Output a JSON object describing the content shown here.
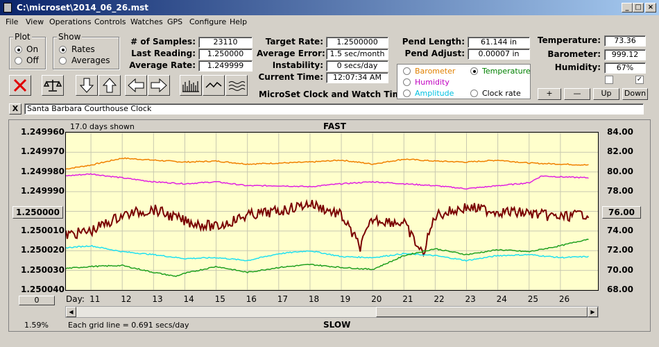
{
  "window": {
    "title": "C:\\microset\\2014_06_26.mst"
  },
  "menu": [
    "File",
    "View",
    "Operations",
    "Controls",
    "Watches",
    "GPS",
    "Configure",
    "Help"
  ],
  "plot_group": {
    "title": "Plot",
    "options": [
      "On",
      "Off"
    ],
    "selected": "On"
  },
  "show_group": {
    "title": "Show",
    "options": [
      "Rates",
      "Averages"
    ],
    "selected": "Rates"
  },
  "stats": {
    "samples_label": "# of Samples:",
    "samples": "23110",
    "last_label": "Last Reading:",
    "last": "1.250000",
    "avg_label": "Average Rate:",
    "avg": "1.249999",
    "target_label": "Target Rate:",
    "target": "1.2500000",
    "err_label": "Average Error:",
    "err": "1.5 sec/month",
    "inst_label": "Instability:",
    "inst": "0 secs/day",
    "time_label": "Current Time:",
    "time": "12:07:34 AM",
    "pendlen_label": "Pend Length:",
    "pendlen": "61.144 in",
    "pendadj_label": "Pend Adjust:",
    "pendadj": "0.00007 in",
    "temp_label": "Temperature:",
    "temp": "73.36",
    "baro_label": "Barometer:",
    "baro": "999.12",
    "hum_label": "Humidity:",
    "hum": "67%"
  },
  "app_caption": "MicroSet Clock and Watch Timer",
  "sensor_options": [
    {
      "label": "Barometer",
      "color": "#e08000",
      "selected": false
    },
    {
      "label": "Temperature",
      "color": "#008000",
      "selected": true
    },
    {
      "label": "Humidity",
      "color": "#c000c0",
      "selected": false
    },
    {
      "label": "Clock rate",
      "color": "#000000",
      "selected": false
    },
    {
      "label": "Amplitude",
      "color": "#00c0e0",
      "selected": false
    }
  ],
  "scale_buttons": [
    "+",
    "—",
    "Up",
    "Down"
  ],
  "checkboxes": [
    false,
    true
  ],
  "clock_name": "Santa Barbara Courthouse Clock",
  "close_label": "X",
  "graph": {
    "days_shown": "17.0 days shown",
    "fast_label": "FAST",
    "slow_label": "SLOW",
    "grid_note": "Each grid line = 0.691 secs/day",
    "percent": "1.59%",
    "day_label": "Day:",
    "left_reset": "1.250000",
    "left_bottom_btn": "0",
    "right_reset": "76.00"
  },
  "chart_data": {
    "type": "line",
    "left_axis": {
      "ticks": [
        "1.249960",
        "1.249970",
        "1.249980",
        "1.249990",
        "1.250000",
        "1.250010",
        "1.250020",
        "1.250030",
        "1.250040"
      ],
      "range": [
        1.24996,
        1.25004
      ],
      "inverted": true
    },
    "right_axis": {
      "ticks": [
        "84.00",
        "82.00",
        "80.00",
        "78.00",
        "76.00",
        "74.00",
        "72.00",
        "70.00",
        "68.00"
      ],
      "range": [
        68,
        84
      ]
    },
    "x_ticks": [
      "11",
      "12",
      "13",
      "14",
      "15",
      "16",
      "17",
      "18",
      "19",
      "20",
      "21",
      "22",
      "23",
      "24",
      "25",
      "26"
    ],
    "x_range": [
      10.2,
      27.2
    ],
    "grid": true,
    "series": [
      {
        "name": "Barometer",
        "color": "#f08000",
        "axis": "right",
        "x": [
          10.2,
          11,
          12,
          13,
          14,
          15,
          16,
          17,
          18,
          19,
          20,
          21,
          22,
          23,
          24,
          25,
          26,
          26.9
        ],
        "y": [
          80.3,
          80.7,
          81.4,
          81.2,
          81.0,
          81.1,
          80.8,
          80.9,
          81.0,
          81.2,
          80.8,
          81.3,
          81.1,
          81.0,
          81.2,
          80.9,
          80.8,
          80.7
        ]
      },
      {
        "name": "Humidity",
        "color": "#e020e0",
        "axis": "right",
        "x": [
          10.2,
          11,
          12,
          13,
          14,
          15,
          16,
          17,
          18,
          19,
          20,
          21,
          22,
          23,
          24,
          25,
          25.4,
          26,
          26.9
        ],
        "y": [
          79.6,
          79.8,
          79.4,
          79.0,
          78.8,
          79.0,
          78.6,
          78.6,
          78.5,
          78.8,
          79.0,
          78.8,
          78.6,
          78.3,
          78.6,
          78.9,
          79.6,
          79.5,
          79.4
        ]
      },
      {
        "name": "Clock rate",
        "color": "#7a0000",
        "axis": "left",
        "x": [
          10.2,
          11,
          12,
          13,
          14,
          15,
          16,
          17,
          18,
          19,
          19.6,
          20,
          21,
          21.6,
          22,
          23,
          24,
          25,
          26,
          26.9
        ],
        "y": [
          1.250012,
          1.25001,
          1.250002,
          1.249999,
          1.250005,
          1.250008,
          1.250002,
          1.25,
          1.249996,
          1.250002,
          1.250018,
          1.250004,
          1.250006,
          1.250022,
          1.250002,
          1.249998,
          1.25,
          1.250001,
          1.250003,
          1.250001
        ]
      },
      {
        "name": "Amplitude",
        "color": "#20e0f0",
        "axis": "right",
        "x": [
          10.2,
          11,
          12,
          13,
          14,
          15,
          16,
          17,
          18,
          19,
          20,
          21,
          22,
          23,
          24,
          25,
          26,
          26.9
        ],
        "y": [
          72.3,
          72.5,
          71.9,
          71.6,
          71.2,
          71.3,
          71.0,
          71.7,
          72.0,
          71.4,
          71.3,
          71.7,
          71.5,
          71.0,
          71.5,
          71.6,
          71.3,
          71.4
        ]
      },
      {
        "name": "Temperature",
        "color": "#20a020",
        "axis": "right",
        "x": [
          10.2,
          11,
          12,
          13,
          13.7,
          14,
          15,
          16,
          17,
          18,
          19,
          20,
          20.8,
          21,
          22,
          23,
          24,
          25,
          26,
          26.9
        ],
        "y": [
          70.2,
          70.4,
          70.5,
          69.8,
          69.4,
          69.7,
          70.4,
          69.8,
          70.3,
          70.6,
          70.3,
          70.1,
          71.2,
          71.5,
          72.2,
          71.6,
          72.1,
          71.9,
          72.5,
          73.2
        ]
      }
    ]
  }
}
